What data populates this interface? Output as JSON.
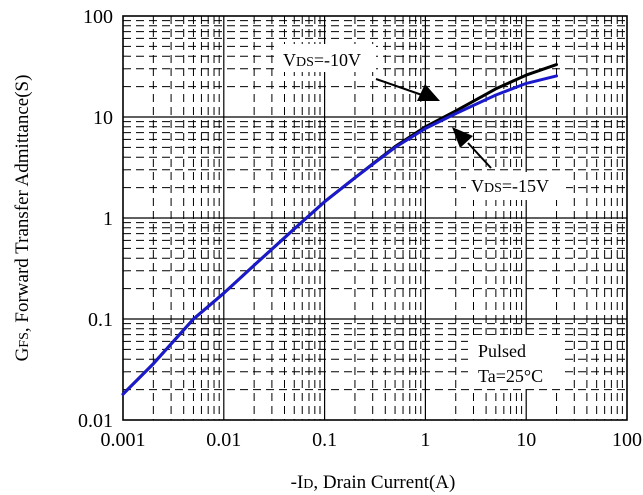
{
  "chart_data": {
    "type": "line",
    "title": "",
    "x_scale": "log",
    "y_scale": "log",
    "xlim": [
      0.001,
      100
    ],
    "ylim": [
      0.01,
      100
    ],
    "x_ticks": [
      {
        "value": 0.001,
        "label": "0.001"
      },
      {
        "value": 0.01,
        "label": "0.01"
      },
      {
        "value": 0.1,
        "label": "0.1"
      },
      {
        "value": 1,
        "label": "1"
      },
      {
        "value": 10,
        "label": "10"
      },
      {
        "value": 100,
        "label": "100"
      }
    ],
    "y_ticks": [
      {
        "value": 0.01,
        "label": "0.01"
      },
      {
        "value": 0.1,
        "label": "0.1"
      },
      {
        "value": 1,
        "label": "1"
      },
      {
        "value": 10,
        "label": "10"
      },
      {
        "value": 100,
        "label": "100"
      }
    ],
    "xlabel": {
      "prefix": "-I",
      "sub": "D",
      "rest": ", Drain Current(A)"
    },
    "ylabel": {
      "prefix": "G",
      "sub": "FS",
      "rest": ", Forward Transfer Admittance(S)"
    },
    "grid": true,
    "series": [
      {
        "name": {
          "prefix": "V",
          "sub": "DS",
          "rest": "=-10V"
        },
        "color": "#000000",
        "x": [
          0.001,
          0.002,
          0.005,
          0.01,
          0.02,
          0.05,
          0.1,
          0.2,
          0.5,
          1,
          2,
          5,
          10,
          20
        ],
        "y": [
          0.018,
          0.036,
          0.1,
          0.18,
          0.34,
          0.78,
          1.45,
          2.5,
          5.1,
          8.0,
          11.5,
          19,
          26,
          33
        ]
      },
      {
        "name": {
          "prefix": "V",
          "sub": "DS",
          "rest": "=-15V"
        },
        "color": "#1a1acc",
        "x": [
          0.001,
          0.002,
          0.005,
          0.01,
          0.02,
          0.05,
          0.1,
          0.2,
          0.5,
          1,
          2,
          5,
          10,
          20
        ],
        "y": [
          0.018,
          0.036,
          0.1,
          0.18,
          0.34,
          0.78,
          1.45,
          2.5,
          5.0,
          7.7,
          10.8,
          16.5,
          21.5,
          25.5
        ]
      }
    ],
    "annotations": {
      "conditions": [
        "Pulsed",
        "Ta=25°C"
      ]
    }
  }
}
